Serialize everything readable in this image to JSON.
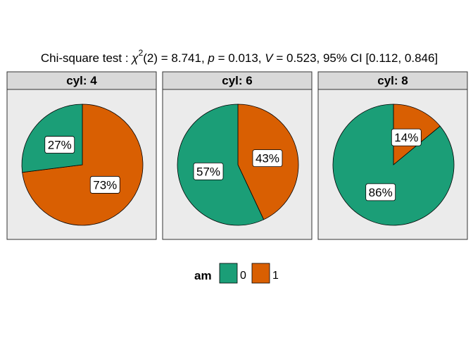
{
  "chart_data": {
    "type": "pie",
    "title": {
      "prefix": "Chi-square test : ",
      "chi_symbol": "χ",
      "chi_superscript": "2",
      "df": "(2)",
      "statistic": " = 8.741, ",
      "p_symbol": "p",
      "p_value": " = 0.013, ",
      "v_symbol": "V",
      "v_value": " = 0.523, 95% CI [0.112, 0.846]"
    },
    "legend": {
      "title": "am",
      "position": "bottom",
      "entries": [
        {
          "key": "0",
          "label": "0",
          "color": "#1b9e77"
        },
        {
          "key": "1",
          "label": "1",
          "color": "#d95f02"
        }
      ]
    },
    "facets": [
      {
        "strip": "cyl: 4",
        "slices": [
          {
            "key": "1",
            "value": 73,
            "label": "73%"
          },
          {
            "key": "0",
            "value": 27,
            "label": "27%"
          }
        ]
      },
      {
        "strip": "cyl: 6",
        "slices": [
          {
            "key": "1",
            "value": 43,
            "label": "43%"
          },
          {
            "key": "0",
            "value": 57,
            "label": "57%"
          }
        ]
      },
      {
        "strip": "cyl: 8",
        "slices": [
          {
            "key": "1",
            "value": 14,
            "label": "14%"
          },
          {
            "key": "0",
            "value": 86,
            "label": "86%"
          }
        ]
      }
    ]
  }
}
